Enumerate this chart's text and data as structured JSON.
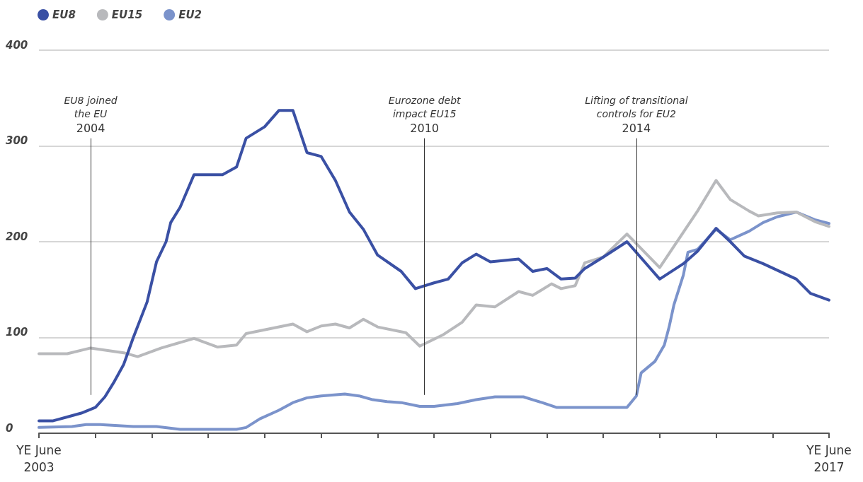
{
  "chart_data": {
    "type": "line",
    "xlim": [
      "2003-06",
      "2017-06"
    ],
    "xticks": [
      {
        "value": "2003-06",
        "label": "YE June 2003"
      },
      {
        "value": "2004-06",
        "label": null
      },
      {
        "value": "2005-06",
        "label": null
      },
      {
        "value": "2006-06",
        "label": null
      },
      {
        "value": "2007-06",
        "label": null
      },
      {
        "value": "2008-06",
        "label": null
      },
      {
        "value": "2009-06",
        "label": null
      },
      {
        "value": "2010-06",
        "label": null
      },
      {
        "value": "2011-06",
        "label": null
      },
      {
        "value": "2012-06",
        "label": null
      },
      {
        "value": "2013-06",
        "label": null
      },
      {
        "value": "2014-06",
        "label": null
      },
      {
        "value": "2015-06",
        "label": null
      },
      {
        "value": "2016-06",
        "label": null
      },
      {
        "value": "2017-06",
        "label": "YE June 2017"
      }
    ],
    "ylim": [
      0,
      400
    ],
    "yticks": [
      0,
      100,
      200,
      300,
      400
    ],
    "grid": "y",
    "legend": "top left",
    "marker": "none",
    "line_style": "solid",
    "series": [
      {
        "name": "EU8",
        "color": "#3a50a4",
        "x": [
          "2003-06",
          "2003-09",
          "2003-12",
          "2004-03",
          "2004-06",
          "2004-08",
          "2004-10",
          "2004-12",
          "2005-02",
          "2005-05",
          "2005-07",
          "2005-09",
          "2005-10",
          "2005-12",
          "2006-03",
          "2006-09",
          "2006-12",
          "2007-02",
          "2007-06",
          "2007-09",
          "2007-12",
          "2008-03",
          "2008-06",
          "2008-09",
          "2008-12",
          "2009-03",
          "2009-06",
          "2009-11",
          "2010-02",
          "2010-06",
          "2010-09",
          "2010-12",
          "2011-03",
          "2011-06",
          "2011-12",
          "2012-03",
          "2012-06",
          "2012-09",
          "2012-12",
          "2013-02",
          "2013-06",
          "2013-11",
          "2014-06",
          "2014-11",
          "2015-02",
          "2015-06",
          "2015-09",
          "2015-12",
          "2016-04",
          "2016-11",
          "2017-02",
          "2017-06"
        ],
        "values": [
          13,
          13,
          17,
          21,
          27,
          38,
          54,
          72,
          100,
          137,
          179,
          200,
          220,
          236,
          270,
          270,
          278,
          308,
          320,
          337,
          337,
          293,
          289,
          264,
          231,
          213,
          186,
          169,
          151,
          157,
          161,
          178,
          187,
          179,
          182,
          169,
          172,
          161,
          162,
          172,
          184,
          200,
          161,
          177,
          190,
          214,
          200,
          185,
          177,
          161,
          146,
          139
        ]
      },
      {
        "name": "EU15",
        "color": "#b8b9bc",
        "x": [
          "2003-06",
          "2003-12",
          "2004-05",
          "2004-12",
          "2005-03",
          "2005-08",
          "2006-03",
          "2006-08",
          "2006-12",
          "2007-02",
          "2007-12",
          "2008-03",
          "2008-06",
          "2008-09",
          "2008-12",
          "2009-03",
          "2009-06",
          "2009-12",
          "2010-03",
          "2010-08",
          "2010-12",
          "2011-03",
          "2011-07",
          "2011-12",
          "2012-03",
          "2012-07",
          "2012-09",
          "2012-12",
          "2013-02",
          "2013-06",
          "2013-11",
          "2014-06",
          "2015-02",
          "2015-06",
          "2015-09",
          "2016-01",
          "2016-03",
          "2016-07",
          "2016-11",
          "2017-03",
          "2017-06"
        ],
        "values": [
          83,
          83,
          89,
          84,
          80,
          89,
          99,
          90,
          92,
          104,
          114,
          106,
          112,
          114,
          110,
          119,
          111,
          105,
          91,
          103,
          116,
          134,
          132,
          148,
          144,
          156,
          151,
          154,
          178,
          184,
          208,
          173,
          232,
          264,
          244,
          232,
          227,
          230,
          231,
          221,
          216
        ]
      },
      {
        "name": "EU2",
        "color": "#7b93cb",
        "x": [
          "2003-06",
          "2004-01",
          "2004-04",
          "2004-07",
          "2005-02",
          "2005-07",
          "2005-12",
          "2006-12",
          "2007-02",
          "2007-05",
          "2007-09",
          "2007-12",
          "2008-03",
          "2008-06",
          "2008-11",
          "2009-02",
          "2009-05",
          "2009-08",
          "2009-11",
          "2010-03",
          "2010-06",
          "2010-11",
          "2011-03",
          "2011-07",
          "2012-01",
          "2012-03",
          "2012-05",
          "2012-08",
          "2012-12",
          "2013-07",
          "2013-11",
          "2014-01",
          "2014-02",
          "2014-05",
          "2014-07",
          "2014-08",
          "2014-09",
          "2014-11",
          "2014-12",
          "2015-02",
          "2015-06",
          "2015-09",
          "2016-01",
          "2016-04",
          "2016-07",
          "2016-11",
          "2017-03",
          "2017-06"
        ],
        "values": [
          6,
          7,
          9,
          9,
          7,
          7,
          4,
          4,
          6,
          15,
          24,
          32,
          37,
          39,
          41,
          39,
          35,
          33,
          32,
          28,
          28,
          31,
          35,
          38,
          38,
          35,
          32,
          27,
          27,
          27,
          27,
          39,
          63,
          75,
          92,
          111,
          134,
          165,
          189,
          192,
          213,
          202,
          211,
          220,
          226,
          231,
          223,
          219
        ]
      }
    ],
    "ref_lines": [
      {
        "axis": "x",
        "value": "2004-05",
        "label": "2004"
      },
      {
        "axis": "x",
        "value": "2010-04",
        "label": "2010"
      },
      {
        "axis": "x",
        "value": "2014-01",
        "label": "2014"
      }
    ],
    "annotations": [
      "EU8 joined the EU",
      "Eurozone debt impact EU15",
      "Lifting of transitional controls for EU2"
    ]
  }
}
